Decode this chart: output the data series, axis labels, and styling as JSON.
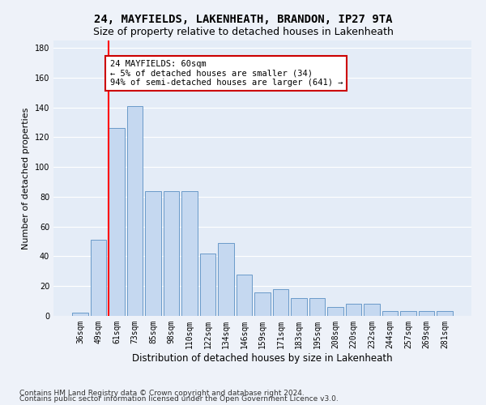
{
  "title": "24, MAYFIELDS, LAKENHEATH, BRANDON, IP27 9TA",
  "subtitle": "Size of property relative to detached houses in Lakenheath",
  "xlabel": "Distribution of detached houses by size in Lakenheath",
  "ylabel": "Number of detached properties",
  "categories": [
    "36sqm",
    "49sqm",
    "61sqm",
    "73sqm",
    "85sqm",
    "98sqm",
    "110sqm",
    "122sqm",
    "134sqm",
    "146sqm",
    "159sqm",
    "171sqm",
    "183sqm",
    "195sqm",
    "208sqm",
    "220sqm",
    "232sqm",
    "244sqm",
    "257sqm",
    "269sqm",
    "281sqm"
  ],
  "values": [
    2,
    51,
    126,
    141,
    84,
    84,
    84,
    42,
    49,
    28,
    16,
    18,
    12,
    12,
    6,
    8,
    8,
    3,
    3,
    3,
    3
  ],
  "bar_color": "#c5d8f0",
  "bar_edge_color": "#5a8fc2",
  "highlight_index": 2,
  "highlight_color": "#ff0000",
  "annotation_text": "24 MAYFIELDS: 60sqm\n← 5% of detached houses are smaller (34)\n94% of semi-detached houses are larger (641) →",
  "annotation_box_color": "#ffffff",
  "annotation_box_edge": "#cc0000",
  "ylim": [
    0,
    185
  ],
  "yticks": [
    0,
    20,
    40,
    60,
    80,
    100,
    120,
    140,
    160,
    180
  ],
  "footer1": "Contains HM Land Registry data © Crown copyright and database right 2024.",
  "footer2": "Contains public sector information licensed under the Open Government Licence v3.0.",
  "bg_color": "#eef2f9",
  "plot_bg_color": "#e4ecf7",
  "grid_color": "#ffffff",
  "title_fontsize": 10,
  "subtitle_fontsize": 9,
  "xlabel_fontsize": 8.5,
  "ylabel_fontsize": 8,
  "tick_fontsize": 7,
  "annotation_fontsize": 7.5,
  "footer_fontsize": 6.5
}
